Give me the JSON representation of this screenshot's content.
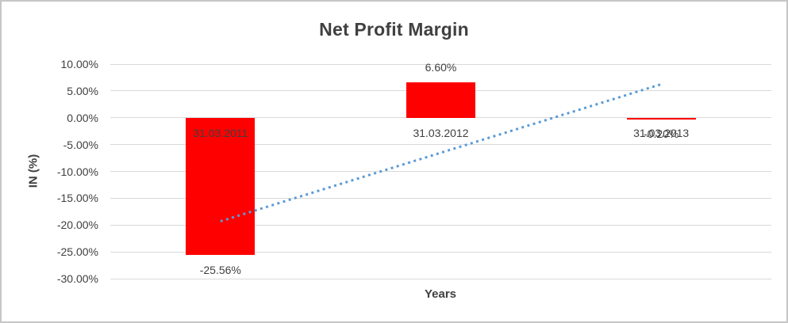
{
  "chart_data": {
    "type": "bar",
    "title": "Net Profit Margin",
    "xlabel": "Years",
    "ylabel": "IN (%)",
    "categories": [
      "31.03.2011",
      "31.03.2012",
      "31.03.2013"
    ],
    "series": [
      {
        "name": "Net Profit Margin",
        "color": "#ff0000",
        "values": [
          -25.56,
          6.6,
          -0.2
        ],
        "data_labels": [
          "-25.56%",
          "6.60%",
          "-0.20%"
        ]
      }
    ],
    "ylim": [
      -30,
      10
    ],
    "yticks": [
      {
        "label": "10.00%",
        "value": 10
      },
      {
        "label": "5.00%",
        "value": 5
      },
      {
        "label": "0.00%",
        "value": 0
      },
      {
        "label": "-5.00%",
        "value": -5
      },
      {
        "label": "-10.00%",
        "value": -10
      },
      {
        "label": "-15.00%",
        "value": -15
      },
      {
        "label": "-20.00%",
        "value": -20
      },
      {
        "label": "-25.00%",
        "value": -25
      },
      {
        "label": "-30.00%",
        "value": -30
      }
    ],
    "grid": true,
    "legend": false,
    "gridline_color": "#d9d9d9",
    "trendline": {
      "type": "linear",
      "style": "dotted",
      "color": "#5b9bd5",
      "start_value": -19.3,
      "end_value": 6.25
    }
  }
}
